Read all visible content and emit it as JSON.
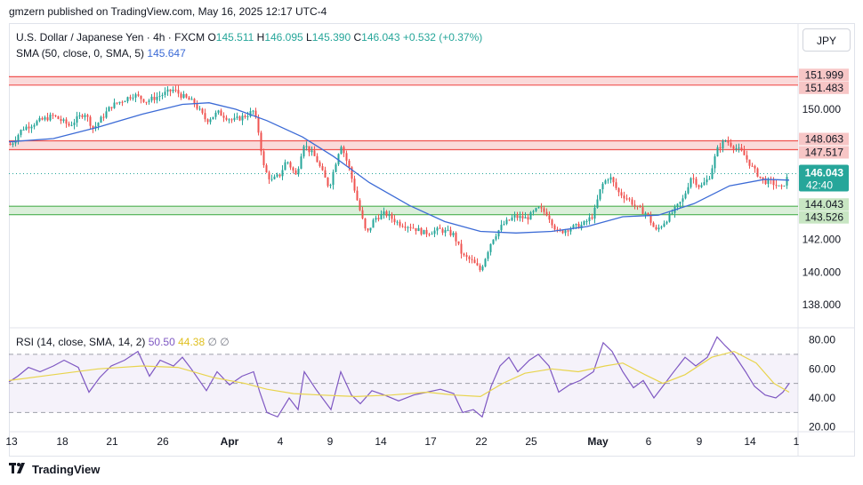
{
  "header": {
    "published": "gmzern published on TradingView.com, May 16, 2025 12:17 UTC-4"
  },
  "legend": {
    "symbol": "U.S. Dollar / Japanese Yen · 4h · FXCM",
    "o_label": "O",
    "o": "145.511",
    "h_label": "H",
    "h": "146.095",
    "l_label": "L",
    "l": "145.390",
    "c_label": "C",
    "c": "146.043",
    "change": "+0.532 (+0.37%)",
    "sma_label": "SMA (50, close, 0, SMA, 5)",
    "sma_value": "145.647",
    "rsi_label": "RSI (14, close, SMA, 14, 2)",
    "rsi_value": "50.50",
    "rsi_sma_value": "44.38",
    "rsi_extra1": "∅",
    "rsi_extra2": "∅"
  },
  "currency_button": "JPY",
  "footer": {
    "brand": "TradingView"
  },
  "colors": {
    "up": "#26a69a",
    "down": "#ef5350",
    "sma": "#3c6bd6",
    "rsi": "#7e57c2",
    "rsi_sma": "#e8d44d",
    "resistance_zone": "#f9d4d4",
    "support_zone": "#d5ecd4"
  },
  "chart_data": {
    "type": "candlestick",
    "timeframe": "4h",
    "price_axis": {
      "ticks": [
        "150.000",
        "142.000",
        "140.000",
        "138.000"
      ],
      "range": [
        136.8,
        153.0
      ]
    },
    "zones": [
      {
        "type": "resistance",
        "high": "151.999",
        "low": "151.483"
      },
      {
        "type": "resistance",
        "high": "148.063",
        "low": "147.517"
      },
      {
        "type": "support",
        "high": "144.043",
        "low": "143.526"
      }
    ],
    "current_price": "146.043",
    "countdown": "42:40",
    "x_axis": {
      "ticks": [
        "13",
        "18",
        "21",
        "26",
        "Apr",
        "4",
        "9",
        "14",
        "17",
        "22",
        "25",
        "May",
        "6",
        "9",
        "14",
        "1"
      ],
      "bold": [
        "Apr",
        "May"
      ]
    },
    "keypoints": [
      [
        0,
        148.3
      ],
      [
        12,
        147.8
      ],
      [
        25,
        148.8
      ],
      [
        45,
        149.3
      ],
      [
        60,
        149.6
      ],
      [
        78,
        149.0
      ],
      [
        95,
        149.8
      ],
      [
        105,
        148.8
      ],
      [
        125,
        150.2
      ],
      [
        140,
        150.6
      ],
      [
        150,
        150.9
      ],
      [
        165,
        150.5
      ],
      [
        178,
        150.8
      ],
      [
        195,
        151.2
      ],
      [
        205,
        150.8
      ],
      [
        218,
        150.4
      ],
      [
        232,
        149.3
      ],
      [
        245,
        149.8
      ],
      [
        262,
        149.3
      ],
      [
        276,
        149.6
      ],
      [
        285,
        149.9
      ],
      [
        290,
        148.8
      ],
      [
        297,
        146.3
      ],
      [
        305,
        145.6
      ],
      [
        315,
        146.0
      ],
      [
        322,
        146.9
      ],
      [
        333,
        145.9
      ],
      [
        341,
        147.9
      ],
      [
        355,
        147.0
      ],
      [
        370,
        145.2
      ],
      [
        383,
        147.9
      ],
      [
        393,
        146.3
      ],
      [
        403,
        144.1
      ],
      [
        412,
        142.3
      ],
      [
        421,
        143.3
      ],
      [
        433,
        143.6
      ],
      [
        448,
        143.0
      ],
      [
        462,
        142.8
      ],
      [
        477,
        142.4
      ],
      [
        495,
        142.6
      ],
      [
        510,
        142.3
      ],
      [
        520,
        141.0
      ],
      [
        530,
        140.7
      ],
      [
        540,
        140.1
      ],
      [
        553,
        142.0
      ],
      [
        565,
        142.9
      ],
      [
        578,
        143.4
      ],
      [
        592,
        143.3
      ],
      [
        605,
        143.9
      ],
      [
        615,
        143.6
      ],
      [
        627,
        142.4
      ],
      [
        640,
        142.7
      ],
      [
        655,
        142.9
      ],
      [
        667,
        143.5
      ],
      [
        676,
        145.3
      ],
      [
        685,
        145.9
      ],
      [
        695,
        144.9
      ],
      [
        706,
        144.5
      ],
      [
        717,
        143.9
      ],
      [
        727,
        143.6
      ],
      [
        737,
        142.5
      ],
      [
        747,
        143.1
      ],
      [
        758,
        143.8
      ],
      [
        768,
        144.5
      ],
      [
        777,
        145.9
      ],
      [
        787,
        145.2
      ],
      [
        797,
        145.8
      ],
      [
        806,
        147.5
      ],
      [
        815,
        148.1
      ],
      [
        823,
        147.8
      ],
      [
        835,
        147.3
      ],
      [
        847,
        146.3
      ],
      [
        858,
        145.6
      ],
      [
        868,
        145.5
      ],
      [
        878,
        145.1
      ],
      [
        887,
        146.0
      ]
    ],
    "sma_points": [
      [
        10,
        148.0
      ],
      [
        60,
        148.2
      ],
      [
        110,
        148.9
      ],
      [
        160,
        149.7
      ],
      [
        205,
        150.3
      ],
      [
        235,
        150.4
      ],
      [
        265,
        150.0
      ],
      [
        300,
        149.3
      ],
      [
        340,
        148.3
      ],
      [
        375,
        147.1
      ],
      [
        415,
        145.5
      ],
      [
        460,
        144.1
      ],
      [
        500,
        143.1
      ],
      [
        540,
        142.5
      ],
      [
        580,
        142.4
      ],
      [
        620,
        142.5
      ],
      [
        660,
        142.8
      ],
      [
        700,
        143.4
      ],
      [
        740,
        143.5
      ],
      [
        780,
        144.2
      ],
      [
        820,
        145.3
      ],
      [
        860,
        145.7
      ],
      [
        887,
        145.65
      ]
    ],
    "rsi": {
      "axis_ticks": [
        "80.00",
        "60.00",
        "40.00",
        "20.00"
      ],
      "range": [
        18,
        84
      ],
      "band": [
        30,
        70
      ],
      "mid": 50,
      "rsi_points": [
        [
          10,
          51
        ],
        [
          20,
          55
        ],
        [
          32,
          61
        ],
        [
          45,
          58
        ],
        [
          60,
          62
        ],
        [
          72,
          66
        ],
        [
          88,
          61
        ],
        [
          100,
          44
        ],
        [
          112,
          54
        ],
        [
          125,
          62
        ],
        [
          140,
          66
        ],
        [
          155,
          72
        ],
        [
          168,
          55
        ],
        [
          180,
          66
        ],
        [
          195,
          62
        ],
        [
          205,
          68
        ],
        [
          215,
          60
        ],
        [
          232,
          45
        ],
        [
          244,
          58
        ],
        [
          258,
          49
        ],
        [
          272,
          55
        ],
        [
          285,
          58
        ],
        [
          292,
          44
        ],
        [
          300,
          30
        ],
        [
          312,
          27
        ],
        [
          325,
          40
        ],
        [
          335,
          32
        ],
        [
          342,
          58
        ],
        [
          355,
          46
        ],
        [
          372,
          32
        ],
        [
          383,
          58
        ],
        [
          395,
          42
        ],
        [
          405,
          36
        ],
        [
          418,
          45
        ],
        [
          432,
          42
        ],
        [
          448,
          38
        ],
        [
          465,
          42
        ],
        [
          480,
          44
        ],
        [
          495,
          46
        ],
        [
          510,
          43
        ],
        [
          520,
          30
        ],
        [
          532,
          32
        ],
        [
          542,
          27
        ],
        [
          552,
          48
        ],
        [
          562,
          62
        ],
        [
          572,
          68
        ],
        [
          582,
          58
        ],
        [
          595,
          66
        ],
        [
          605,
          70
        ],
        [
          617,
          62
        ],
        [
          628,
          44
        ],
        [
          640,
          49
        ],
        [
          652,
          52
        ],
        [
          667,
          58
        ],
        [
          678,
          78
        ],
        [
          688,
          72
        ],
        [
          700,
          58
        ],
        [
          712,
          47
        ],
        [
          723,
          52
        ],
        [
          735,
          40
        ],
        [
          745,
          48
        ],
        [
          756,
          57
        ],
        [
          770,
          68
        ],
        [
          782,
          62
        ],
        [
          795,
          68
        ],
        [
          806,
          82
        ],
        [
          815,
          76
        ],
        [
          825,
          70
        ],
        [
          838,
          58
        ],
        [
          848,
          48
        ],
        [
          860,
          42
        ],
        [
          872,
          40
        ],
        [
          880,
          44
        ],
        [
          887,
          50
        ]
      ],
      "sma_points": [
        [
          10,
          52
        ],
        [
          60,
          56
        ],
        [
          110,
          60
        ],
        [
          160,
          62
        ],
        [
          200,
          61
        ],
        [
          240,
          54
        ],
        [
          275,
          50
        ],
        [
          300,
          46
        ],
        [
          330,
          43
        ],
        [
          360,
          42
        ],
        [
          400,
          41
        ],
        [
          440,
          42
        ],
        [
          480,
          44
        ],
        [
          510,
          42
        ],
        [
          540,
          41
        ],
        [
          565,
          50
        ],
        [
          590,
          57
        ],
        [
          620,
          60
        ],
        [
          650,
          58
        ],
        [
          680,
          62
        ],
        [
          700,
          64
        ],
        [
          725,
          56
        ],
        [
          745,
          50
        ],
        [
          770,
          56
        ],
        [
          800,
          68
        ],
        [
          825,
          72
        ],
        [
          850,
          64
        ],
        [
          870,
          50
        ],
        [
          887,
          44
        ]
      ]
    }
  }
}
